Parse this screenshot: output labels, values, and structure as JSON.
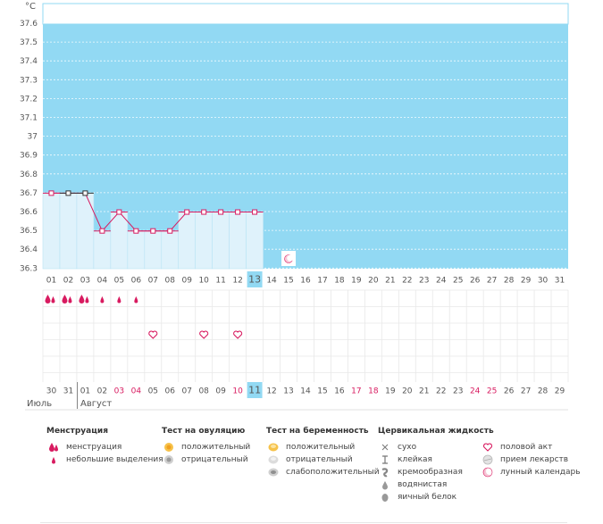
{
  "colors": {
    "plot_bg": "#92d9f3",
    "bar_fill": "#dff2fb",
    "line": "#d81b60",
    "today_bg": "#92d9f3",
    "weekend": "#d81b60",
    "grid": "#e8e8e8"
  },
  "chart_data": {
    "type": "line",
    "ylabel": "°C",
    "y_ticks": [
      "37.6",
      "37.5",
      "37.4",
      "37.3",
      "37.2",
      "37.1",
      "37",
      "36.9",
      "36.8",
      "36.7",
      "36.6",
      "36.5",
      "36.4",
      "36.3"
    ],
    "ylim": [
      36.3,
      37.6
    ],
    "days": [
      "01",
      "02",
      "03",
      "04",
      "05",
      "06",
      "07",
      "08",
      "09",
      "10",
      "11",
      "12",
      "13",
      "14",
      "15",
      "16",
      "17",
      "18",
      "19",
      "20",
      "21",
      "22",
      "23",
      "24",
      "25",
      "26",
      "27",
      "28",
      "29",
      "30",
      "31"
    ],
    "today_index": 12,
    "series": [
      {
        "values": [
          36.7,
          36.7,
          36.7,
          36.5,
          36.6,
          36.5,
          36.5,
          36.5,
          36.6,
          36.6,
          36.6,
          36.6,
          36.6
        ]
      }
    ],
    "marker_black": [
      1,
      2
    ]
  },
  "moon_index": 14,
  "menstruation": [
    "big",
    "big",
    "big",
    "small",
    "small",
    "small"
  ],
  "sex_icons": [
    6,
    9,
    11
  ],
  "calendar": {
    "prev_days": [
      "30",
      "31"
    ],
    "days": [
      "01",
      "02",
      "03",
      "04",
      "05",
      "06",
      "07",
      "08",
      "09",
      "10",
      "11",
      "12",
      "13",
      "14",
      "15",
      "16",
      "17",
      "18",
      "19",
      "20",
      "21",
      "22",
      "23",
      "24",
      "25",
      "26",
      "27",
      "28",
      "29"
    ],
    "weekend_indexes": [
      2,
      3,
      9,
      16,
      17,
      23,
      24
    ],
    "today_index": 10,
    "month_prev": "Июль",
    "month_cur": "Август"
  },
  "legend": {
    "menstruation": {
      "title": "Менструация",
      "items": [
        "менструация",
        "небольшие выделения"
      ]
    },
    "ovulation": {
      "title": "Тест на овуляцию",
      "items": [
        "положительный",
        "отрицательный"
      ]
    },
    "pregnancy": {
      "title": "Тест на беременность",
      "items": [
        "положительный",
        "отрицательный",
        "слабоположительный"
      ]
    },
    "cervical": {
      "title": "Цервикальная жидкость",
      "items": [
        "сухо",
        "клейкая",
        "кремообразная",
        "водянистая",
        "яичный белок"
      ]
    },
    "other": {
      "items": [
        "половой акт",
        "прием лекарств",
        "лунный календарь"
      ]
    }
  },
  "icons": {
    "drop": "drop-icon",
    "heart": "heart-icon",
    "moon": "moon-icon",
    "pill": "pill-icon"
  }
}
